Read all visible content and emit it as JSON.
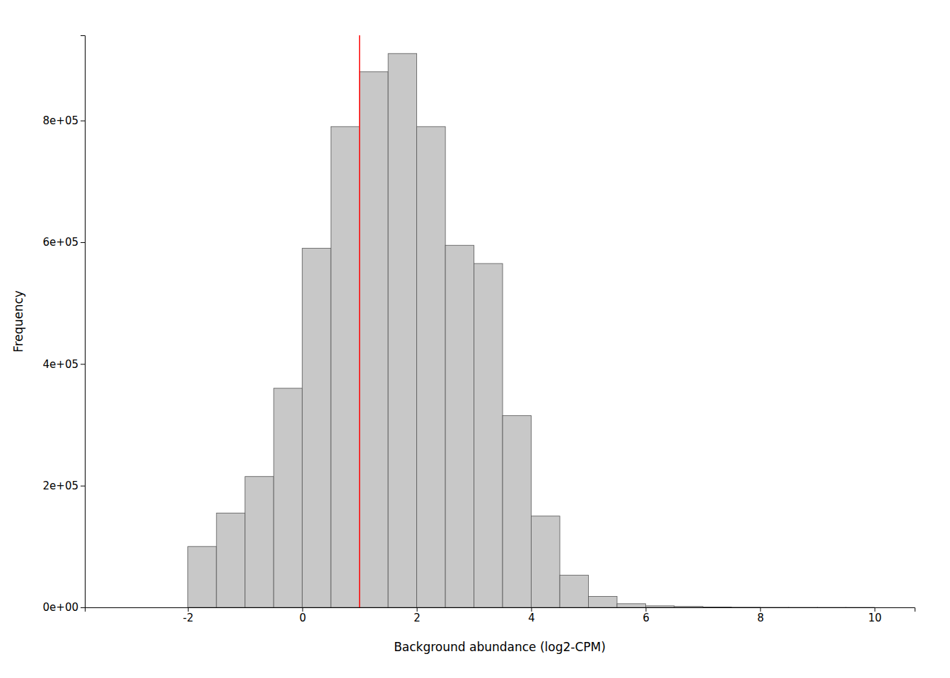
{
  "chart_data": {
    "type": "histogram",
    "xlabel": "Background abundance (log2-CPM)",
    "ylabel": "Frequency",
    "bins": [
      -2.0,
      -1.5,
      -1.0,
      -0.5,
      0.0,
      0.5,
      1.0,
      1.5,
      2.0,
      2.5,
      3.0,
      3.5,
      4.0,
      4.5,
      5.0,
      5.5,
      6.0,
      6.5,
      7.0,
      7.5,
      8.0,
      8.5,
      9.0,
      9.5,
      10.0
    ],
    "values": [
      100000,
      155000,
      215000,
      360000,
      590000,
      790000,
      880000,
      910000,
      790000,
      595000,
      565000,
      315000,
      150000,
      53000,
      18000,
      6000,
      2500,
      1500,
      700,
      300,
      100,
      50,
      20,
      5
    ],
    "color": "#c8c8c8",
    "vlines": [
      {
        "x": 1.0,
        "color": "red"
      }
    ],
    "xlim": [
      -3.8,
      10.7
    ],
    "xticks": [
      -2,
      0,
      2,
      4,
      6,
      8,
      10
    ],
    "ylim": [
      0,
      940000
    ],
    "yticks": [
      {
        "value": 0,
        "label": "0e+00"
      },
      {
        "value": 200000,
        "label": "2e+05"
      },
      {
        "value": 400000,
        "label": "4e+05"
      },
      {
        "value": 600000,
        "label": "6e+05"
      },
      {
        "value": 800000,
        "label": "8e+05"
      }
    ],
    "grid": false
  }
}
